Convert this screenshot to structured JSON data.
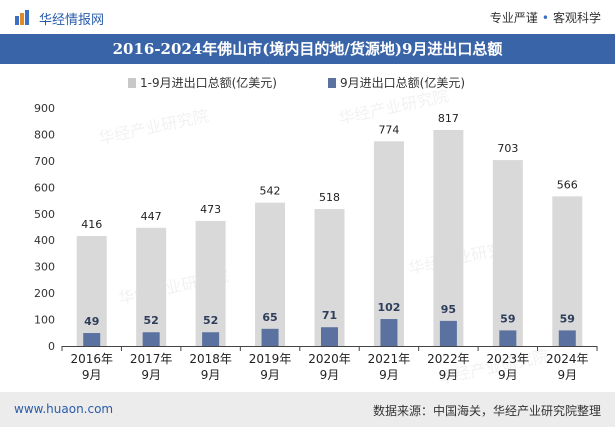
{
  "header": {
    "brand": "华经情报网",
    "slogan_left": "专业严谨",
    "slogan_right": "客观科学",
    "title": "2016-2024年佛山市(境内目的地/货源地)9月进出口总额"
  },
  "footer": {
    "site": "www.huaon.com",
    "source": "数据来源：中国海关，华经产业研究院整理"
  },
  "watermark": "华经产业研究院",
  "colors": {
    "title_bg": "#3a64a8",
    "series1": "#d9d9d9",
    "series2": "#5b72a0",
    "legend1": "#c8c8c8",
    "footer_bg": "#ececec"
  },
  "chart_data": {
    "type": "bar",
    "categories": [
      [
        "2016年",
        "9月"
      ],
      [
        "2017年",
        "9月"
      ],
      [
        "2018年",
        "9月"
      ],
      [
        "2019年",
        "9月"
      ],
      [
        "2020年",
        "9月"
      ],
      [
        "2021年",
        "9月"
      ],
      [
        "2022年",
        "9月"
      ],
      [
        "2023年",
        "9月"
      ],
      [
        "2024年",
        "9月"
      ]
    ],
    "series": [
      {
        "name": "1-9月进出口总额(亿美元)",
        "values": [
          416,
          447,
          473,
          542,
          518,
          774,
          817,
          703,
          566
        ]
      },
      {
        "name": "9月进出口总额(亿美元)",
        "values": [
          49,
          52,
          52,
          65,
          71,
          102,
          95,
          59,
          59
        ]
      }
    ],
    "ylim": [
      0,
      900
    ],
    "yticks": [
      0,
      100,
      200,
      300,
      400,
      500,
      600,
      700,
      800,
      900
    ],
    "legend_position": "top",
    "grid": false
  }
}
